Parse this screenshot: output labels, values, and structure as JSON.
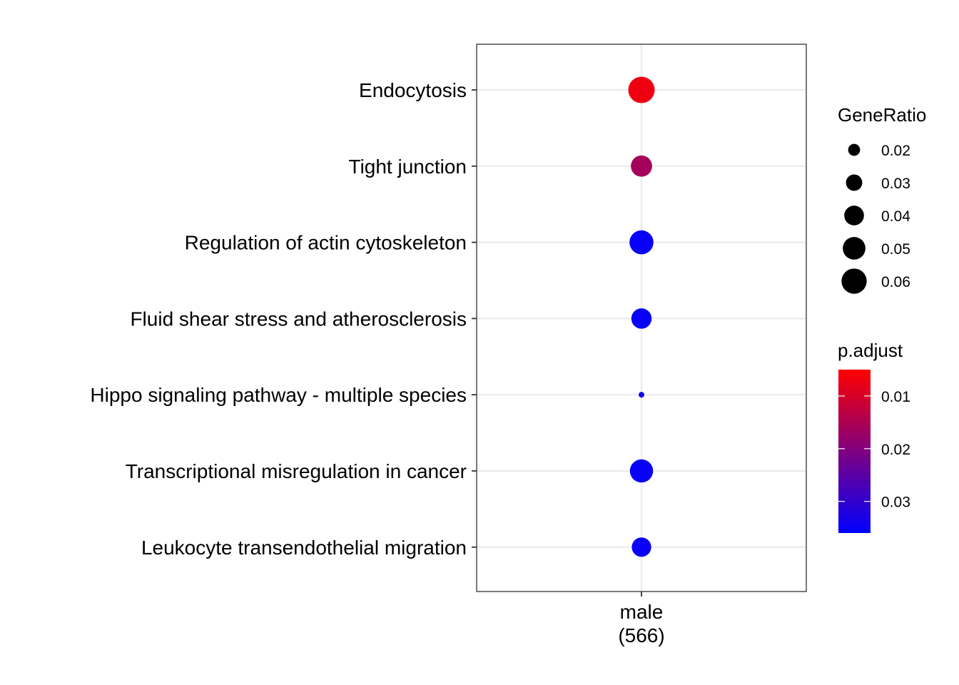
{
  "chart_data": {
    "type": "scatter",
    "title": "",
    "xlabel": "",
    "ylabel": "",
    "x_categories": [
      "male\n(566)"
    ],
    "x_category_lines": [
      "male",
      "(566)"
    ],
    "categories": [
      "Endocytosis",
      "Tight junction",
      "Regulation of actin cytoskeleton",
      "Fluid shear stress and atherosclerosis",
      "Hippo signaling pathway - multiple species",
      "Transcriptional misregulation in cancer",
      "Leukocyte transendothelial migration"
    ],
    "points": [
      {
        "x": "male\n(566)",
        "y": "Endocytosis",
        "gene_ratio": 0.065,
        "p_adjust": 0.007
      },
      {
        "x": "male\n(566)",
        "y": "Tight junction",
        "gene_ratio": 0.045,
        "p_adjust": 0.016
      },
      {
        "x": "male\n(566)",
        "y": "Regulation of actin cytoskeleton",
        "gene_ratio": 0.055,
        "p_adjust": 0.035
      },
      {
        "x": "male\n(566)",
        "y": "Fluid shear stress and atherosclerosis",
        "gene_ratio": 0.042,
        "p_adjust": 0.035
      },
      {
        "x": "male\n(566)",
        "y": "Hippo signaling pathway - multiple species",
        "gene_ratio": 0.011,
        "p_adjust": 0.034
      },
      {
        "x": "male\n(566)",
        "y": "Transcriptional misregulation in cancer",
        "gene_ratio": 0.052,
        "p_adjust": 0.035
      },
      {
        "x": "male\n(566)",
        "y": "Leukocyte transendothelial migration",
        "gene_ratio": 0.039,
        "p_adjust": 0.035
      }
    ],
    "size_legend": {
      "title": "GeneRatio",
      "breaks": [
        0.02,
        0.03,
        0.04,
        0.05,
        0.06
      ],
      "labels": [
        "0.02",
        "0.03",
        "0.04",
        "0.05",
        "0.06"
      ]
    },
    "color_legend": {
      "title": "p.adjust",
      "range": [
        0.005,
        0.036
      ],
      "low_color": "#ff0000",
      "high_color": "#0000ff",
      "breaks": [
        0.01,
        0.02,
        0.03
      ],
      "labels": [
        "0.01",
        "0.02",
        "0.03"
      ]
    },
    "grid": true,
    "legend_position": "right"
  }
}
